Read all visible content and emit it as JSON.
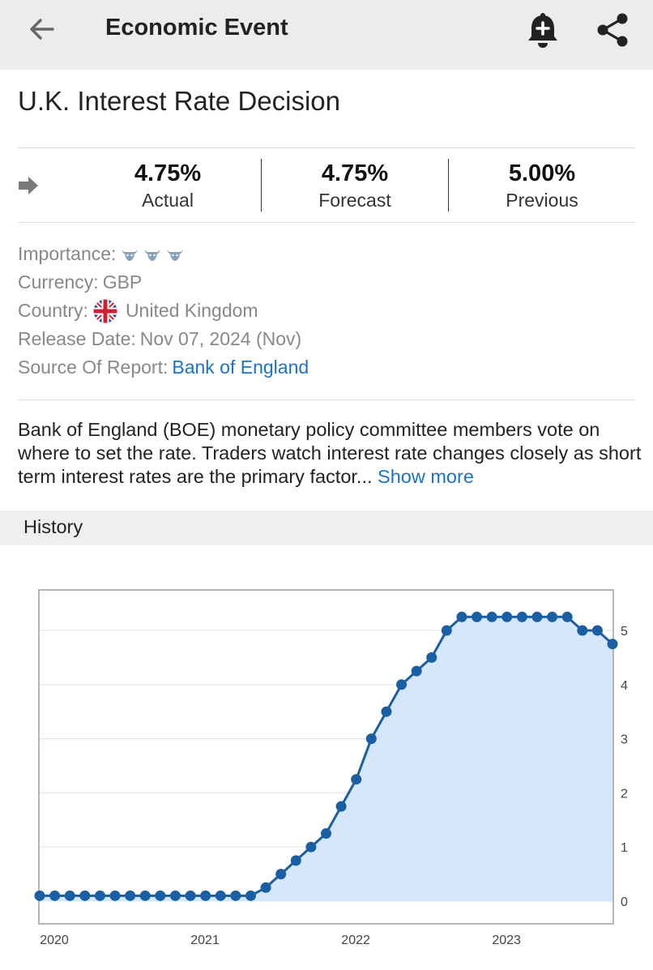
{
  "header": {
    "title": "Economic Event",
    "back_icon": "back-arrow-icon",
    "bell_icon": "bell-plus-icon",
    "share_icon": "share-icon",
    "bg_color": "#ececec"
  },
  "event": {
    "title": "U.K. Interest Rate Decision",
    "direction_icon": "right-arrow-icon",
    "actual": {
      "value": "4.75%",
      "label": "Actual"
    },
    "forecast": {
      "value": "4.75%",
      "label": "Forecast"
    },
    "previous": {
      "value": "5.00%",
      "label": "Previous"
    }
  },
  "info": {
    "importance_label": "Importance:",
    "importance_level": 3,
    "importance_icon": "bull-icon",
    "currency_label": "Currency:",
    "currency_value": "GBP",
    "country_label": "Country:",
    "country_value": "United Kingdom",
    "country_flag": "uk-flag-icon",
    "release_label": "Release Date:",
    "release_value": "Nov 07, 2024 (Nov)",
    "source_label": "Source Of Report:",
    "source_value": "Bank of England"
  },
  "description": {
    "text": "Bank of England (BOE) monetary policy committee members vote on where to set the rate. Traders watch interest rate changes closely as short term interest rates are the primary factor...",
    "show_more": "Show more"
  },
  "history": {
    "label": "History"
  },
  "colors": {
    "accent": "#1a73c8",
    "line": "#1a5fa3",
    "fill": "#d6e6fb"
  },
  "chart_data": {
    "type": "area",
    "title": "",
    "xlabel": "",
    "ylabel": "",
    "ylim": [
      0,
      5.5
    ],
    "y_ticks": [
      "0",
      "1",
      "2",
      "3",
      "4",
      "5"
    ],
    "x_ticks": [
      {
        "label": "2020",
        "x": 2020.0
      },
      {
        "label": "2021",
        "x": 2021.0
      },
      {
        "label": "2022",
        "x": 2022.0
      },
      {
        "label": "2023",
        "x": 2023.0
      }
    ],
    "grid": true,
    "y_axis_position": "right",
    "series": [
      {
        "x": [
          2020.0,
          2020.1,
          2020.2,
          2020.3,
          2020.4,
          2020.5,
          2020.6,
          2020.7,
          2020.8,
          2020.9,
          2021.0,
          2021.1,
          2021.2,
          2021.3,
          2021.4,
          2021.5,
          2021.6,
          2021.7,
          2021.8,
          2021.9,
          2022.0,
          2022.1,
          2022.2,
          2022.3,
          2022.4,
          2022.5,
          2022.6,
          2022.7,
          2022.8,
          2022.9,
          2023.0,
          2023.1,
          2023.2,
          2023.3,
          2023.4,
          2023.5,
          2023.6,
          2023.7,
          2023.8
        ],
        "values": [
          0.1,
          0.1,
          0.1,
          0.1,
          0.1,
          0.1,
          0.1,
          0.1,
          0.1,
          0.1,
          0.1,
          0.1,
          0.1,
          0.1,
          0.1,
          0.25,
          0.5,
          0.75,
          1.0,
          1.25,
          1.75,
          2.25,
          3.0,
          3.5,
          4.0,
          4.25,
          4.5,
          5.0,
          5.25,
          5.25,
          5.25,
          5.25,
          5.25,
          5.25,
          5.25,
          5.25,
          5.0,
          5.0,
          4.75
        ]
      }
    ]
  }
}
